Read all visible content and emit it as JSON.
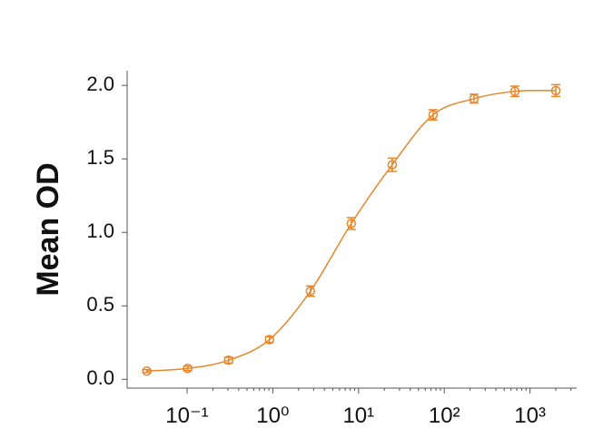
{
  "chart_data": {
    "type": "line",
    "y_label": "Mean OD",
    "x": [
      0.0339,
      0.1016,
      0.305,
      0.914,
      2.743,
      8.23,
      24.69,
      74.07,
      222.2,
      666.7,
      2000
    ],
    "values": [
      0.056,
      0.074,
      0.13,
      0.27,
      0.6,
      1.06,
      1.46,
      1.8,
      1.91,
      1.96,
      1.965
    ],
    "errors": [
      0.01,
      0.015,
      0.02,
      0.02,
      0.035,
      0.04,
      0.045,
      0.035,
      0.03,
      0.035,
      0.04
    ],
    "color": "#e8862a",
    "xscale": "log",
    "xlim": [
      0.02,
      3500
    ],
    "ylim": [
      -0.06,
      2.1
    ],
    "xticks": [
      {
        "value": 0.1,
        "label": "10⁻¹"
      },
      {
        "value": 1,
        "label": "10⁰"
      },
      {
        "value": 10,
        "label": "10¹"
      },
      {
        "value": 100,
        "label": "10²"
      },
      {
        "value": 1000,
        "label": "10³"
      }
    ],
    "yticks": [
      {
        "value": 0,
        "label": "0.0"
      },
      {
        "value": 0.5,
        "label": "0.5"
      },
      {
        "value": 1,
        "label": "1.0"
      },
      {
        "value": 1.5,
        "label": "1.5"
      },
      {
        "value": 2,
        "label": "2.0"
      }
    ]
  }
}
